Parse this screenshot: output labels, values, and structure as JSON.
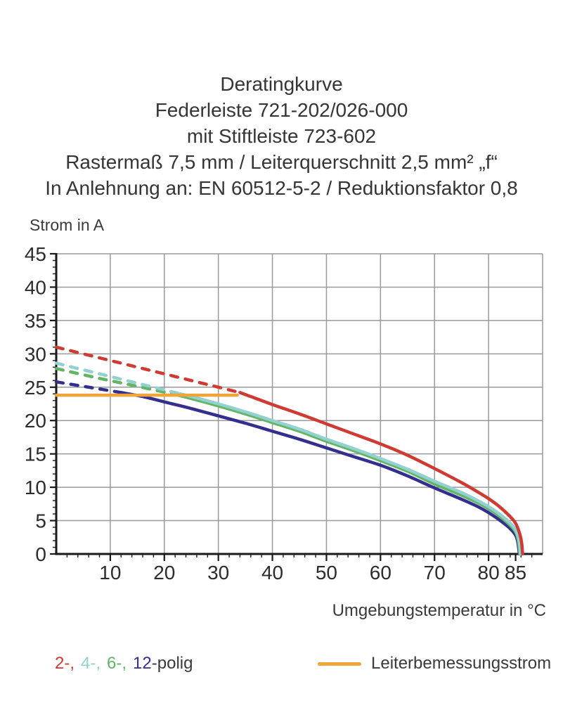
{
  "title": {
    "lines": [
      "Deratingkurve",
      "Federleiste 721-202/026-000",
      "mit Stiftleiste 723-602",
      "Rastermaß 7,5 mm / Leiterquerschnitt 2,5 mm² „f“",
      "In Anlehnung an: EN 60512-5-2 / Reduktionsfaktor 0,8"
    ]
  },
  "legend": {
    "pole_items": [
      {
        "label": "2-,",
        "color": "#cf3a32"
      },
      {
        "label": "4-,",
        "color": "#92d1cf"
      },
      {
        "label": "6-,",
        "color": "#63b464"
      },
      {
        "label": "12",
        "color": "#322f8e"
      }
    ],
    "pole_suffix": "-polig",
    "rated_current_label": "Leiterbemessungsstrom",
    "rated_current_color": "#f0a43a"
  },
  "chart_data": {
    "type": "line",
    "xlabel": "Umgebungstemperatur in °C",
    "ylabel": "Strom in A",
    "xlim": [
      0,
      90
    ],
    "ylim": [
      0,
      45
    ],
    "x_ticks": [
      10,
      20,
      30,
      40,
      50,
      60,
      70,
      80,
      85
    ],
    "x_grid": [
      10,
      20,
      30,
      40,
      50,
      60,
      70,
      80
    ],
    "y_ticks": [
      0,
      5,
      10,
      15,
      20,
      25,
      30,
      35,
      40,
      45
    ],
    "x_minor_step": 2,
    "y_minor_step": 1,
    "grid": true,
    "grid_color": "#9a9a9a",
    "axis_color": "#1a1a1c",
    "tick_label_color": "#2c2c2e",
    "series": [
      {
        "name": "12-polig",
        "color": "#322f8e",
        "segments": [
          {
            "style": "dashed",
            "points": [
              [
                0,
                25.8
              ],
              [
                6,
                25.0
              ],
              [
                12,
                24.2
              ]
            ]
          },
          {
            "style": "solid",
            "points": [
              [
                12,
                24.2
              ],
              [
                16,
                23.6
              ],
              [
                20,
                22.8
              ],
              [
                25,
                21.8
              ],
              [
                30,
                20.7
              ],
              [
                35,
                19.6
              ],
              [
                40,
                18.4
              ],
              [
                45,
                17.2
              ],
              [
                50,
                15.9
              ],
              [
                55,
                14.6
              ],
              [
                60,
                13.3
              ],
              [
                65,
                11.7
              ],
              [
                70,
                9.9
              ],
              [
                75,
                8.2
              ],
              [
                78,
                7.1
              ],
              [
                80,
                6.2
              ],
              [
                82,
                5.1
              ],
              [
                84,
                3.8
              ],
              [
                85,
                2.8
              ],
              [
                85.4,
                1.8
              ],
              [
                85.7,
                0
              ]
            ]
          }
        ]
      },
      {
        "name": "6-polig",
        "color": "#63b464",
        "segments": [
          {
            "style": "dashed",
            "points": [
              [
                0,
                27.8
              ],
              [
                7,
                26.5
              ],
              [
                14,
                25.3
              ],
              [
                21.5,
                24.0
              ]
            ]
          },
          {
            "style": "solid",
            "points": [
              [
                21.5,
                24.0
              ],
              [
                25,
                23.3
              ],
              [
                30,
                22.2
              ],
              [
                35,
                21.0
              ],
              [
                40,
                19.7
              ],
              [
                45,
                18.4
              ],
              [
                50,
                16.9
              ],
              [
                55,
                15.5
              ],
              [
                60,
                14.0
              ],
              [
                65,
                12.4
              ],
              [
                70,
                10.5
              ],
              [
                75,
                8.8
              ],
              [
                78,
                7.7
              ],
              [
                80,
                6.8
              ],
              [
                82,
                5.7
              ],
              [
                84,
                4.3
              ],
              [
                85,
                3.3
              ],
              [
                85.5,
                2.0
              ],
              [
                85.8,
                0
              ]
            ]
          }
        ]
      },
      {
        "name": "4-polig",
        "color": "#92d1cf",
        "segments": [
          {
            "style": "dashed",
            "points": [
              [
                0,
                28.6
              ],
              [
                8,
                27.0
              ],
              [
                16,
                25.4
              ],
              [
                23,
                24.0
              ]
            ]
          },
          {
            "style": "solid",
            "points": [
              [
                23,
                24.0
              ],
              [
                25,
                23.6
              ],
              [
                30,
                22.5
              ],
              [
                35,
                21.3
              ],
              [
                40,
                20.0
              ],
              [
                45,
                18.7
              ],
              [
                50,
                17.2
              ],
              [
                55,
                15.8
              ],
              [
                60,
                14.3
              ],
              [
                65,
                12.7
              ],
              [
                70,
                10.9
              ],
              [
                75,
                9.2
              ],
              [
                78,
                8.0
              ],
              [
                80,
                7.1
              ],
              [
                82,
                6.0
              ],
              [
                84,
                4.6
              ],
              [
                85,
                3.6
              ],
              [
                85.6,
                2.2
              ],
              [
                85.9,
                0
              ]
            ]
          }
        ]
      },
      {
        "name": "Leiterbemessungsstrom",
        "color": "#f0a43a",
        "segments": [
          {
            "style": "solid",
            "points": [
              [
                0,
                23.8
              ],
              [
                33.5,
                23.8
              ]
            ]
          }
        ]
      },
      {
        "name": "2-polig",
        "color": "#cf3a32",
        "segments": [
          {
            "style": "dashed",
            "points": [
              [
                0,
                31.0
              ],
              [
                8,
                29.4
              ],
              [
                16,
                27.8
              ],
              [
                25,
                26.0
              ],
              [
                34,
                24.2
              ]
            ]
          },
          {
            "style": "solid",
            "points": [
              [
                34,
                24.2
              ],
              [
                35,
                23.9
              ],
              [
                40,
                22.4
              ],
              [
                45,
                21.0
              ],
              [
                50,
                19.5
              ],
              [
                55,
                18.0
              ],
              [
                60,
                16.5
              ],
              [
                65,
                14.8
              ],
              [
                70,
                12.8
              ],
              [
                75,
                10.7
              ],
              [
                78,
                9.3
              ],
              [
                80,
                8.3
              ],
              [
                82,
                7.1
              ],
              [
                84,
                5.6
              ],
              [
                85,
                4.6
              ],
              [
                85.7,
                3.2
              ],
              [
                86.1,
                1.8
              ],
              [
                86.3,
                0
              ]
            ]
          }
        ]
      }
    ]
  }
}
